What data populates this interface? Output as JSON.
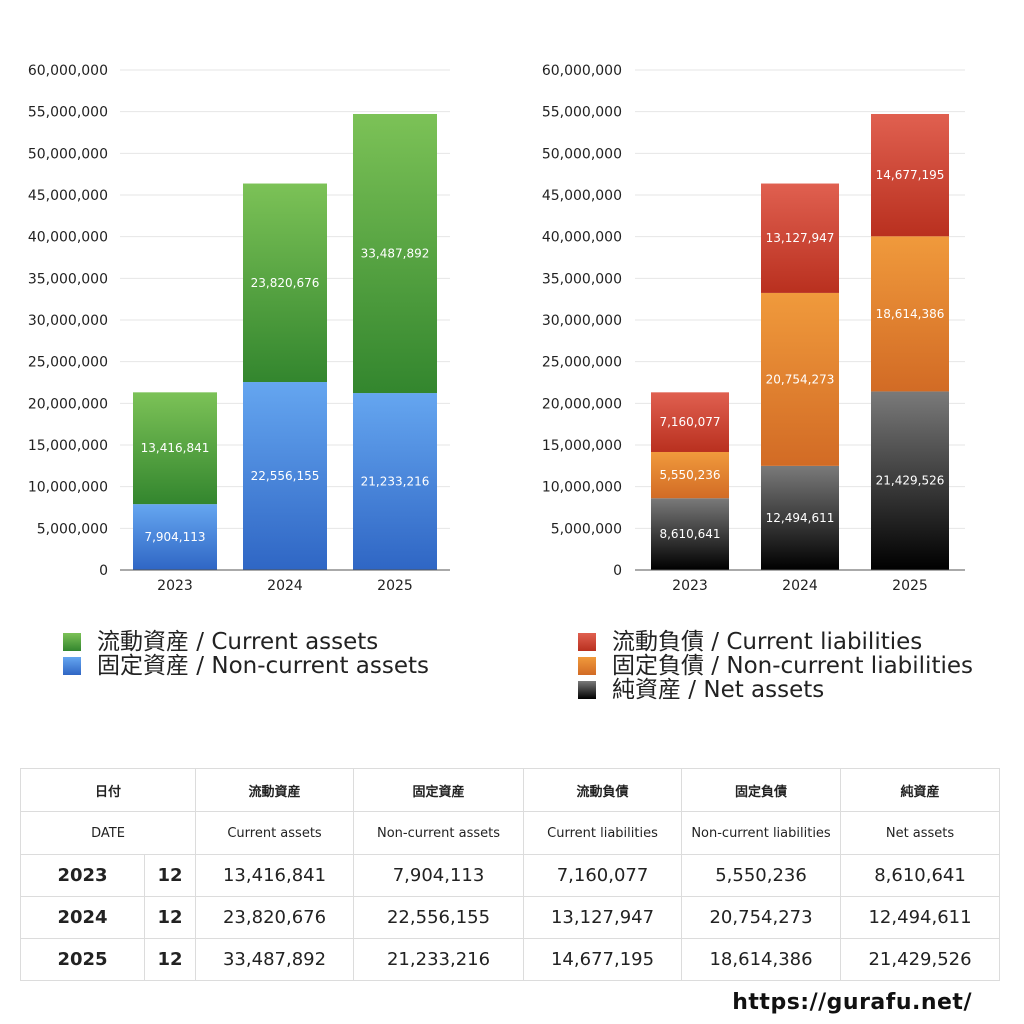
{
  "chart_data": [
    {
      "type": "bar",
      "stacked": true,
      "categories": [
        "2023",
        "2024",
        "2025"
      ],
      "ylim": [
        0,
        60000000
      ],
      "yticks": [
        "0",
        "5,000,000",
        "10,000,000",
        "15,000,000",
        "20,000,000",
        "25,000,000",
        "30,000,000",
        "35,000,000",
        "40,000,000",
        "45,000,000",
        "50,000,000",
        "55,000,000",
        "60,000,000"
      ],
      "grid": true,
      "series": [
        {
          "name": "固定資産 / Non-current assets",
          "color": "#3a78d6",
          "values": [
            7904113,
            22556155,
            21233216
          ],
          "labels": [
            "7,904,113",
            "22,556,155",
            "21,233,216"
          ]
        },
        {
          "name": "流動資産 / Current assets",
          "color": "#4a9b3c",
          "values": [
            13416841,
            23820676,
            33487892
          ],
          "labels": [
            "13,416,841",
            "23,820,676",
            "33,487,892"
          ]
        }
      ]
    },
    {
      "type": "bar",
      "stacked": true,
      "categories": [
        "2023",
        "2024",
        "2025"
      ],
      "ylim": [
        0,
        60000000
      ],
      "yticks": [
        "0",
        "5,000,000",
        "10,000,000",
        "15,000,000",
        "20,000,000",
        "25,000,000",
        "30,000,000",
        "35,000,000",
        "40,000,000",
        "45,000,000",
        "50,000,000",
        "55,000,000",
        "60,000,000"
      ],
      "grid": true,
      "series": [
        {
          "name": "純資産 / Net assets",
          "color": "#333333",
          "values": [
            8610641,
            12494611,
            21429526
          ],
          "labels": [
            "8,610,641",
            "12,494,611",
            "21,429,526"
          ]
        },
        {
          "name": "固定負債 / Non-current liabilities",
          "color": "#e07f2e",
          "values": [
            5550236,
            20754273,
            18614386
          ],
          "labels": [
            "5,550,236",
            "20,754,273",
            "18,614,386"
          ]
        },
        {
          "name": "流動負債 / Current liabilities",
          "color": "#c9402e",
          "values": [
            7160077,
            13127947,
            14677195
          ],
          "labels": [
            "7,160,077",
            "13,127,947",
            "14,677,195"
          ]
        }
      ]
    }
  ],
  "legend_left": [
    {
      "label": "流動資産 / Current assets",
      "color": "#4a9b3c"
    },
    {
      "label": "固定資産 / Non-current assets",
      "color": "#3a78d6"
    }
  ],
  "legend_right": [
    {
      "label": "流動負債 / Current liabilities",
      "color": "#c9402e"
    },
    {
      "label": "固定負債 / Non-current liabilities",
      "color": "#e07f2e"
    },
    {
      "label": "純資産 / Net assets",
      "color": "#222222"
    }
  ],
  "table": {
    "header_jp": [
      "日付",
      "流動資産",
      "固定資産",
      "流動負債",
      "固定負債",
      "純資産"
    ],
    "header_en": [
      "DATE",
      "Current assets",
      "Non-current assets",
      "Current liabilities",
      "Non-current liabilities",
      "Net assets"
    ],
    "rows": [
      {
        "year": "2023",
        "month": "12",
        "values": [
          "13,416,841",
          "7,904,113",
          "7,160,077",
          "5,550,236",
          "8,610,641"
        ]
      },
      {
        "year": "2024",
        "month": "12",
        "values": [
          "23,820,676",
          "22,556,155",
          "13,127,947",
          "20,754,273",
          "12,494,611"
        ]
      },
      {
        "year": "2025",
        "month": "12",
        "values": [
          "33,487,892",
          "21,233,216",
          "14,677,195",
          "18,614,386",
          "21,429,526"
        ]
      }
    ]
  },
  "site_url": "https://gurafu.net/"
}
